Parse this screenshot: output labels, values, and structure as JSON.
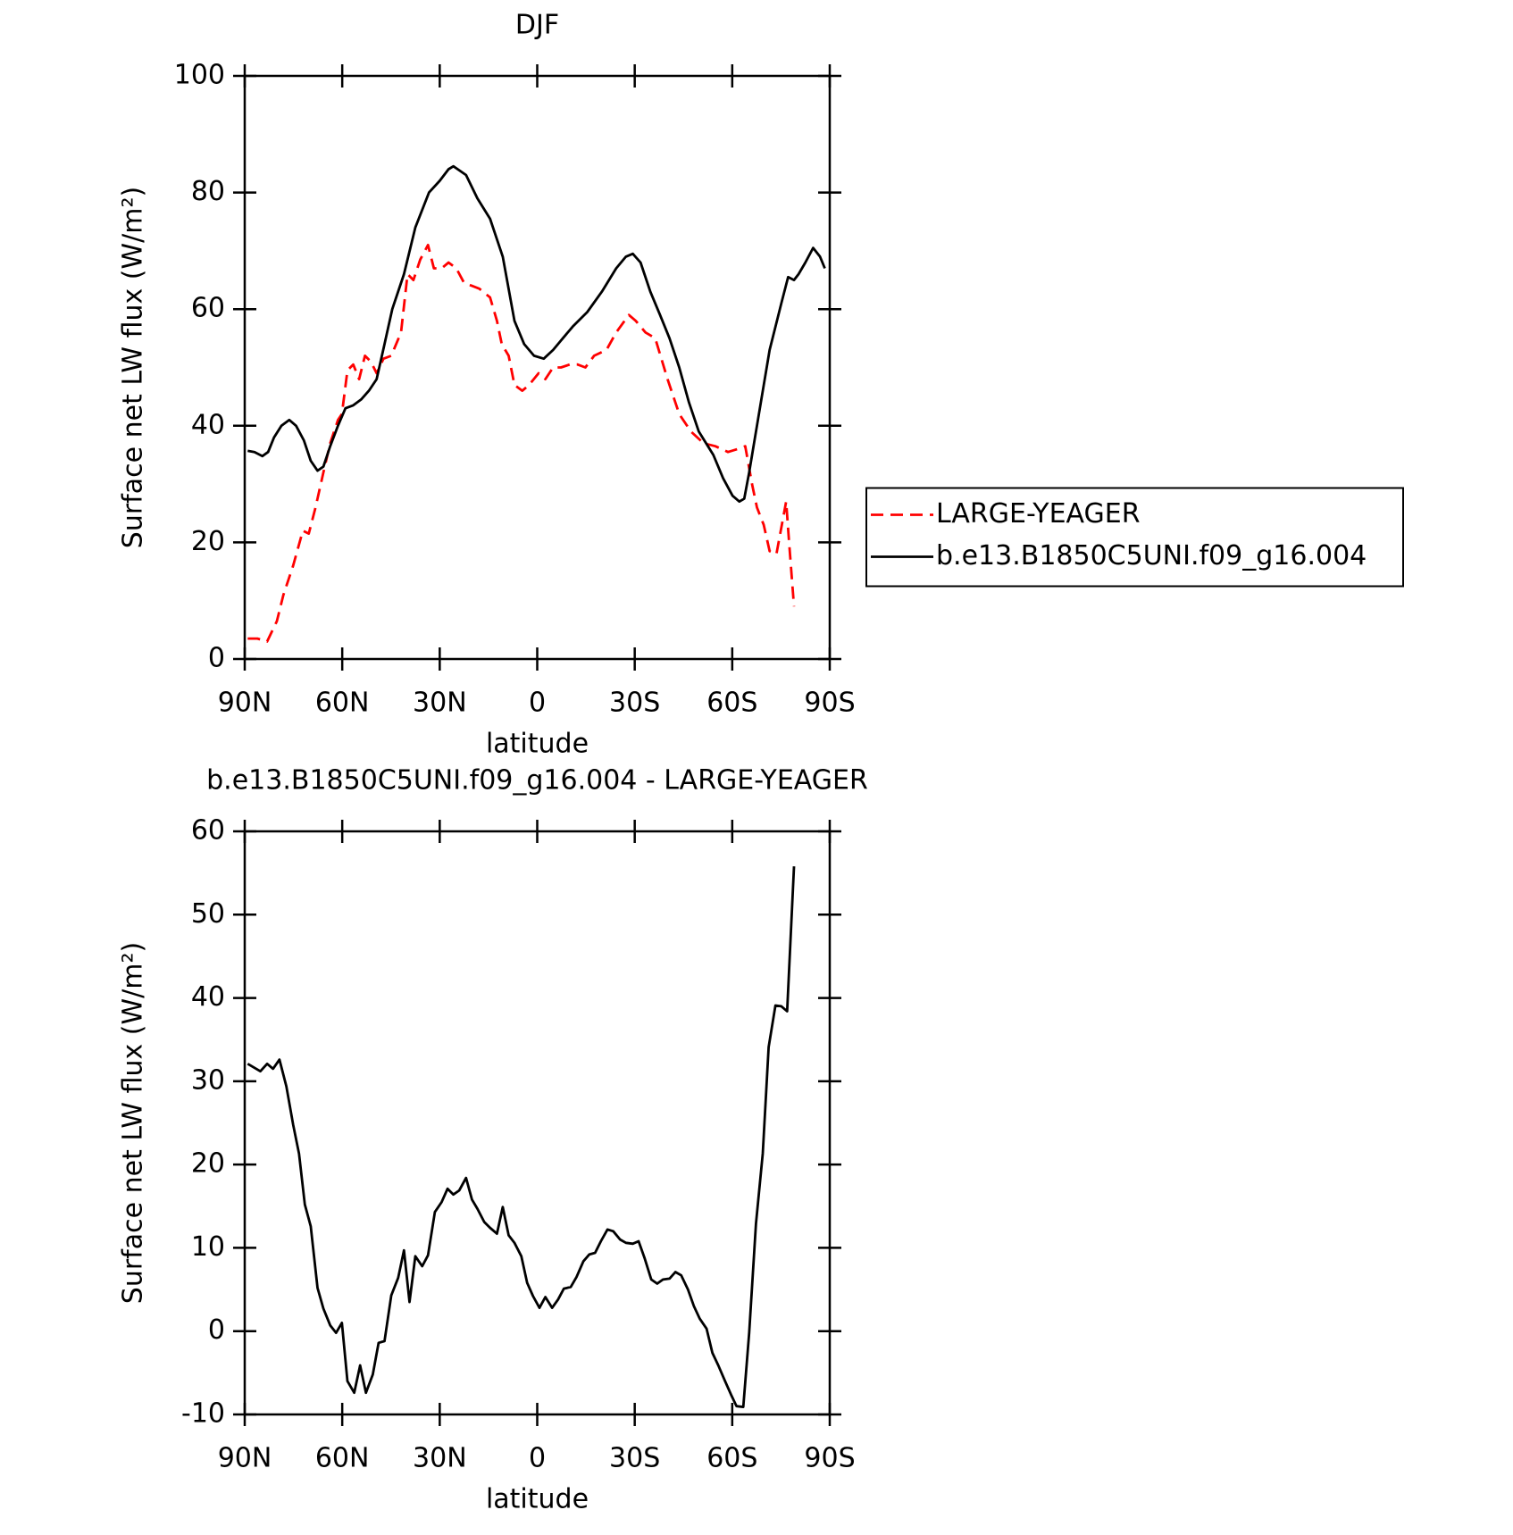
{
  "chart_data": [
    {
      "type": "line",
      "title": "DJF",
      "xlabel": "latitude",
      "ylabel": "Surface net LW flux (W/m²)",
      "xlim": [
        90,
        -90
      ],
      "xticks": [
        {
          "value": 90,
          "label": "90N"
        },
        {
          "value": 60,
          "label": "60N"
        },
        {
          "value": 30,
          "label": "30N"
        },
        0,
        {
          "value": -30,
          "label": "30S"
        },
        {
          "value": -60,
          "label": "60S"
        },
        {
          "value": -90,
          "label": "90S"
        }
      ],
      "ylim": [
        0,
        100
      ],
      "yticks": [
        0,
        20,
        40,
        60,
        80,
        100
      ],
      "legend": "right",
      "series": [
        {
          "name": "LARGE-YEAGER",
          "color": "#ff0000",
          "dash": true,
          "x": [
            89.1,
            86.1,
            83.1,
            80.1,
            78.1,
            75.1,
            72.1,
            70.3,
            68.2,
            65.8,
            63.7,
            61.3,
            60.1,
            58.4,
            56.6,
            54.8,
            53.0,
            51.2,
            49.4,
            47.3,
            44.9,
            41.9,
            39.9,
            38.1,
            36.0,
            33.6,
            31.8,
            29.4,
            27.3,
            24.9,
            22.5,
            20.1,
            17.8,
            14.5,
            12.4,
            10.9,
            8.8,
            7.0,
            4.6,
            2.5,
            -0.4,
            -2.5,
            -4.9,
            -7.3,
            -10.0,
            -12.4,
            -14.8,
            -17.5,
            -21.3,
            -24.3,
            -28.2,
            -30.3,
            -33.3,
            -36.3,
            -40.1,
            -43.7,
            -47.3,
            -51.2,
            -54.8,
            -58.7,
            -61.6,
            -64.0,
            -66.1,
            -67.6,
            -69.7,
            -71.5,
            -73.6,
            -76.6,
            -77.5,
            -79.0
          ],
          "values": [
            3.5,
            3.5,
            3,
            6.5,
            11,
            16,
            22,
            21.5,
            26,
            32,
            37,
            41,
            42,
            49.5,
            50.5,
            48,
            52,
            51,
            49,
            51.5,
            52,
            56,
            66,
            65,
            68.5,
            71,
            67,
            67,
            68,
            67,
            64.5,
            64,
            63.5,
            62,
            58,
            54,
            52,
            47,
            46,
            47,
            49,
            48,
            50,
            50,
            50.5,
            50.5,
            50,
            52,
            53,
            56,
            59,
            58,
            56,
            55,
            48,
            42,
            39,
            37,
            36.5,
            35.5,
            36,
            36.5,
            30,
            26,
            23,
            18.5,
            18,
            27,
            20,
            9
          ]
        },
        {
          "name": "b.e13.B1850C5UNI.f09_g16.004",
          "color": "#000000",
          "dash": false,
          "x": [
            89.1,
            87.0,
            84.6,
            82.8,
            81.0,
            78.7,
            76.3,
            74.2,
            71.8,
            69.7,
            67.6,
            65.8,
            63.7,
            61.3,
            59.0,
            56.6,
            54.2,
            51.8,
            49.4,
            47.0,
            44.6,
            41.0,
            37.5,
            33.3,
            30.0,
            27.3,
            25.8,
            21.9,
            18.4,
            14.5,
            10.6,
            7.0,
            4.0,
            1.0,
            -2.0,
            -4.9,
            -7.9,
            -10.9,
            -15.4,
            -19.9,
            -24.3,
            -27.3,
            -29.4,
            -31.8,
            -34.8,
            -37.8,
            -40.7,
            -43.7,
            -46.7,
            -49.7,
            -54.2,
            -57.2,
            -60.1,
            -62.2,
            -63.7,
            -65.2,
            -67.6,
            -71.5,
            -75.1,
            -77.2,
            -79.0,
            -80.4,
            -82.5,
            -84.9,
            -87.0,
            -88.5
          ],
          "values": [
            35.7,
            35.5,
            34.8,
            35.5,
            38,
            40,
            41,
            40,
            37.5,
            34,
            32.3,
            33,
            36.5,
            40,
            43,
            43.5,
            44.5,
            46,
            48,
            54,
            60,
            66,
            74,
            80,
            82,
            84,
            84.5,
            83,
            79,
            75.5,
            69,
            58,
            54,
            52,
            51.5,
            53,
            55,
            57,
            59.5,
            63,
            67,
            69,
            69.5,
            68,
            63,
            59,
            55,
            50,
            44,
            39,
            35,
            31,
            28,
            27,
            27.5,
            32,
            40,
            53,
            61,
            65.5,
            65,
            66,
            68,
            70.5,
            69,
            67
          ]
        }
      ]
    },
    {
      "type": "line",
      "title": "b.e13.B1850C5UNI.f09_g16.004 - LARGE-YEAGER",
      "xlabel": "latitude",
      "ylabel": "Surface net LW flux (W/m²)",
      "xlim": [
        90,
        -90
      ],
      "xticks": [
        {
          "value": 90,
          "label": "90N"
        },
        {
          "value": 60,
          "label": "60N"
        },
        {
          "value": 30,
          "label": "30N"
        },
        0,
        {
          "value": -30,
          "label": "30S"
        },
        {
          "value": -60,
          "label": "60S"
        },
        {
          "value": -90,
          "label": "90S"
        }
      ],
      "ylim": [
        -10,
        60
      ],
      "yticks": [
        -10,
        0,
        10,
        20,
        30,
        40,
        50,
        60
      ],
      "series": [
        {
          "color": "#000000",
          "dash": false,
          "x": [
            89.1,
            85.2,
            83.1,
            81.3,
            79.3,
            77.2,
            75.1,
            73.3,
            71.5,
            69.7,
            67.6,
            65.8,
            63.7,
            61.9,
            60.1,
            58.4,
            56.3,
            54.5,
            52.7,
            50.6,
            48.8,
            47.0,
            44.9,
            42.8,
            41.0,
            39.3,
            37.5,
            35.4,
            33.6,
            31.5,
            29.4,
            27.6,
            25.8,
            24.0,
            21.9,
            20.1,
            18.4,
            16.3,
            14.5,
            12.4,
            10.6,
            8.8,
            7.0,
            4.9,
            3.1,
            1.3,
            -0.7,
            -2.5,
            -4.6,
            -6.4,
            -8.2,
            -10.3,
            -12.1,
            -14.2,
            -16.0,
            -17.8,
            -19.6,
            -21.6,
            -23.4,
            -25.5,
            -27.3,
            -29.4,
            -31.2,
            -33.0,
            -35.1,
            -36.9,
            -38.7,
            -40.7,
            -42.5,
            -44.3,
            -46.4,
            -48.2,
            -50.0,
            -52.1,
            -53.9,
            -55.7,
            -57.8,
            -59.6,
            -61.3,
            -63.4,
            -65.2,
            -67.3,
            -69.4,
            -71.2,
            -73.3,
            -75.1,
            -76.9,
            -79.0
          ],
          "values": [
            32.1,
            31.2,
            32.1,
            31.5,
            32.6,
            29.4,
            24.8,
            21.3,
            15.2,
            12.6,
            5.2,
            2.7,
            0.7,
            -0.2,
            1.0,
            -6.0,
            -7.4,
            -4.1,
            -7.4,
            -5.2,
            -1.4,
            -1.2,
            4.3,
            6.4,
            9.7,
            3.5,
            9.0,
            7.8,
            9.1,
            14.3,
            15.5,
            17.1,
            16.4,
            16.9,
            18.4,
            15.8,
            14.7,
            13.1,
            12.4,
            11.7,
            14.9,
            11.5,
            10.6,
            9.0,
            5.8,
            4.2,
            2.8,
            4.1,
            2.8,
            3.8,
            5.1,
            5.3,
            6.5,
            8.4,
            9.2,
            9.4,
            10.8,
            12.2,
            12.0,
            11.0,
            10.6,
            10.5,
            10.8,
            8.8,
            6.2,
            5.7,
            6.2,
            6.3,
            7.1,
            6.7,
            5.0,
            3.0,
            1.5,
            0.3,
            -2.6,
            -4.1,
            -6.0,
            -7.6,
            -9.0,
            -9.1,
            -0.2,
            12.9,
            21.3,
            34.1,
            39.1,
            39.0,
            38.4,
            55.8
          ]
        }
      ]
    }
  ]
}
